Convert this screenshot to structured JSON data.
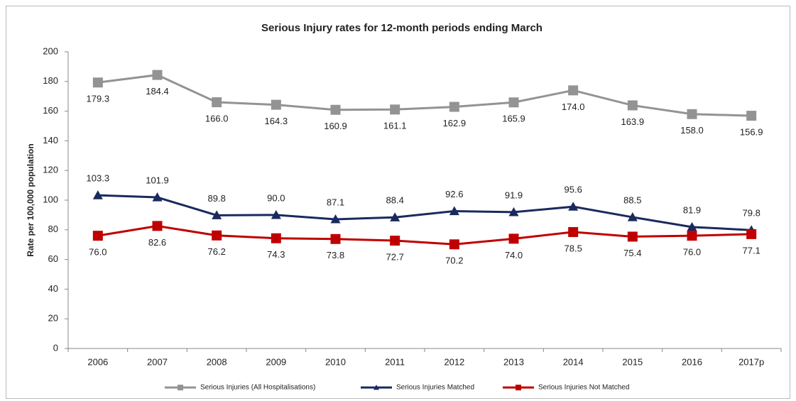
{
  "chart_data": {
    "type": "line",
    "title": "Serious Injury rates for 12-month periods ending March",
    "y_label": "Rate per 100,000 population",
    "categories": [
      "2006",
      "2007",
      "2008",
      "2009",
      "2010",
      "2011",
      "2012",
      "2013",
      "2014",
      "2015",
      "2016",
      "2017p"
    ],
    "series": [
      {
        "name": "Serious Injuries (All Hospitalisations)",
        "color": "#939393",
        "marker": "square",
        "label_position": "below",
        "values": [
          179.3,
          184.4,
          166.0,
          164.3,
          160.9,
          161.1,
          162.9,
          165.9,
          174.0,
          163.9,
          158.0,
          156.9
        ],
        "value_labels": [
          "179.3",
          "184.4",
          "166.0",
          "164.3",
          "160.9",
          "161.1",
          "162.9",
          "165.9",
          "174.0",
          "163.9",
          "158.0",
          "156.9"
        ]
      },
      {
        "name": "Serious Injuries Matched",
        "color": "#1a2a5e",
        "marker": "triangle",
        "label_position": "above",
        "values": [
          103.3,
          101.9,
          89.8,
          90.0,
          87.1,
          88.4,
          92.6,
          91.9,
          95.6,
          88.5,
          81.9,
          79.8
        ],
        "value_labels": [
          "103.3",
          "101.9",
          "89.8",
          "90.0",
          "87.1",
          "88.4",
          "92.6",
          "91.9",
          "95.6",
          "88.5",
          "81.9",
          "79.8"
        ]
      },
      {
        "name": "Serious Injuries Not Matched",
        "color": "#c00000",
        "marker": "square",
        "label_position": "below",
        "values": [
          76.0,
          82.6,
          76.2,
          74.3,
          73.8,
          72.7,
          70.2,
          74.0,
          78.5,
          75.4,
          76.0,
          77.1
        ],
        "value_labels": [
          "76.0",
          "82.6",
          "76.2",
          "74.3",
          "73.8",
          "72.7",
          "70.2",
          "74.0",
          "78.5",
          "75.4",
          "76.0",
          "77.1"
        ]
      }
    ],
    "ylim": [
      0,
      200
    ],
    "yticks": [
      0,
      20,
      40,
      60,
      80,
      100,
      120,
      140,
      160,
      180,
      200
    ],
    "grid": false,
    "legend": "bottom"
  }
}
